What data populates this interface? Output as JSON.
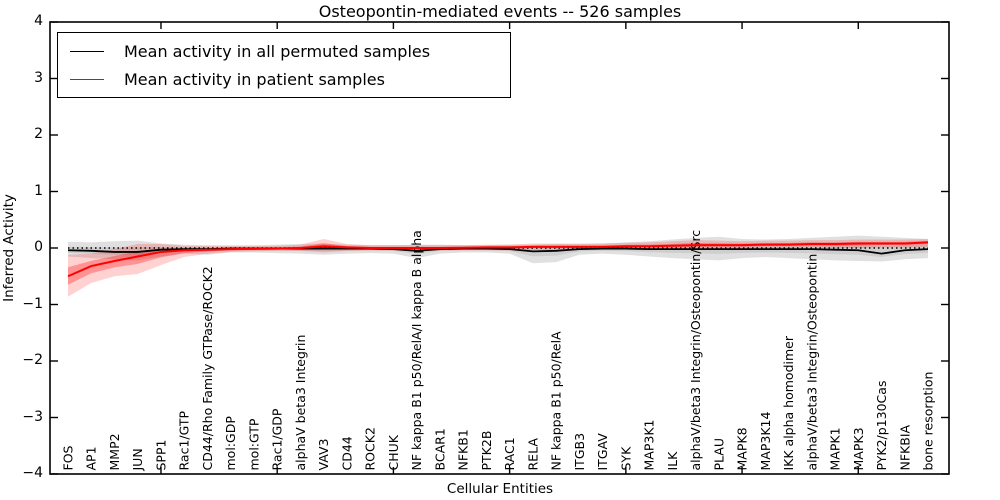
{
  "figure": {
    "title": "Osteopontin-mediated events -- 526 samples",
    "xlabel": "Cellular Entities",
    "ylabel": "Inferred Activity",
    "ytick_labels": [
      "4",
      "3",
      "2",
      "1",
      "0",
      "−1",
      "−2",
      "−3",
      "−4"
    ]
  },
  "chart_data": {
    "type": "line",
    "title": "Osteopontin-mediated events -- 526 samples",
    "xlabel": "Cellular Entities",
    "ylabel": "Inferred Activity",
    "ylim": [
      -4,
      4
    ],
    "yticks": [
      4,
      3,
      2,
      1,
      0,
      -1,
      -2,
      -3,
      -4
    ],
    "xticks_unlabeled_positions": [
      5,
      10,
      15,
      20,
      25,
      30,
      35
    ],
    "grid": false,
    "zero_reference_line": true,
    "legend_position": "upper left",
    "categories": [
      "FOS",
      "AP1",
      "MMP2",
      "JUN",
      "SPP1",
      "Rac1/GTP",
      "CD44/Rho Family GTPase/ROCK2",
      "mol:GDP",
      "mol:GTP",
      "Rac1/GDP",
      "alphaV beta3 Integrin",
      "VAV3",
      "CD44",
      "ROCK2",
      "CHUK",
      "NF kappa B1 p50/RelA/I kappa B alpha",
      "BCAR1",
      "NFKB1",
      "PTK2B",
      "RAC1",
      "RELA",
      "NF kappa B1 p50/RelA",
      "ITGB3",
      "ITGAV",
      "SYK",
      "MAP3K1",
      "ILK",
      "alphaV/beta3 Integrin/Osteopontin/Src",
      "PLAU",
      "MAPK8",
      "MAP3K14",
      "IKK alpha homodimer",
      "alphaV/beta3 Integrin/Osteopontin",
      "MAPK1",
      "MAPK3",
      "PYK2/p130Cas",
      "NFKBIA",
      "bone resorption"
    ],
    "series": [
      {
        "name": "Mean activity in all permuted samples",
        "color": "#000000",
        "band_color": "rgba(0,0,0,0.12)",
        "values": [
          -0.04,
          -0.05,
          -0.07,
          -0.07,
          -0.03,
          -0.02,
          -0.02,
          -0.01,
          -0.01,
          -0.01,
          -0.01,
          -0.01,
          -0.01,
          -0.01,
          -0.02,
          -0.05,
          -0.02,
          -0.01,
          -0.01,
          -0.02,
          -0.06,
          -0.05,
          -0.02,
          -0.01,
          -0.01,
          -0.02,
          -0.02,
          -0.02,
          -0.02,
          -0.02,
          -0.02,
          -0.02,
          -0.02,
          -0.03,
          -0.04,
          -0.1,
          -0.04,
          -0.02
        ],
        "band_low": [
          -0.15,
          -0.18,
          -0.2,
          -0.22,
          -0.15,
          -0.1,
          -0.12,
          -0.08,
          -0.08,
          -0.09,
          -0.1,
          -0.12,
          -0.1,
          -0.09,
          -0.1,
          -0.18,
          -0.1,
          -0.08,
          -0.08,
          -0.1,
          -0.27,
          -0.25,
          -0.12,
          -0.1,
          -0.12,
          -0.15,
          -0.18,
          -0.2,
          -0.22,
          -0.18,
          -0.16,
          -0.18,
          -0.2,
          -0.22,
          -0.23,
          -0.24,
          -0.2,
          -0.18
        ],
        "band_high": [
          0.11,
          0.1,
          0.12,
          0.13,
          0.08,
          0.06,
          0.05,
          0.05,
          0.05,
          0.06,
          0.07,
          0.08,
          0.06,
          0.05,
          0.05,
          0.06,
          0.06,
          0.05,
          0.05,
          0.06,
          0.06,
          0.07,
          0.07,
          0.08,
          0.1,
          0.12,
          0.15,
          0.18,
          0.2,
          0.16,
          0.15,
          0.16,
          0.18,
          0.2,
          0.22,
          0.2,
          0.18,
          0.16
        ]
      },
      {
        "name": "Mean activity in patient samples",
        "color": "#ff0000",
        "band_color": "rgba(255,0,0,0.18)",
        "values": [
          -0.5,
          -0.32,
          -0.23,
          -0.15,
          -0.07,
          -0.04,
          -0.03,
          -0.02,
          -0.015,
          -0.01,
          0,
          0.03,
          0.01,
          0,
          0,
          0,
          0,
          0.005,
          0.01,
          0.01,
          0.02,
          0.02,
          0.02,
          0.02,
          0.03,
          0.03,
          0.04,
          0.05,
          0.05,
          0.05,
          0.06,
          0.06,
          0.07,
          0.07,
          0.08,
          0.08,
          0.08,
          0.1
        ],
        "band_low": [
          -0.86,
          -0.62,
          -0.5,
          -0.46,
          -0.3,
          -0.16,
          -0.1,
          -0.07,
          -0.06,
          -0.05,
          -0.05,
          -0.08,
          -0.05,
          -0.04,
          -0.04,
          -0.05,
          -0.04,
          -0.04,
          -0.04,
          -0.04,
          -0.03,
          -0.03,
          -0.03,
          -0.02,
          -0.02,
          -0.02,
          -0.03,
          -0.02,
          -0.01,
          -0.01,
          0,
          0,
          0.01,
          0,
          0,
          0.01,
          0.01,
          0.02
        ],
        "band_high": [
          -0.12,
          -0.1,
          -0.02,
          0.07,
          0.07,
          0.04,
          0.03,
          0.03,
          0.03,
          0.04,
          0.06,
          0.16,
          0.07,
          0.05,
          0.05,
          0.05,
          0.05,
          0.05,
          0.06,
          0.06,
          0.08,
          0.08,
          0.08,
          0.08,
          0.09,
          0.1,
          0.12,
          0.14,
          0.13,
          0.12,
          0.13,
          0.13,
          0.14,
          0.14,
          0.15,
          0.15,
          0.15,
          0.16
        ]
      }
    ]
  }
}
